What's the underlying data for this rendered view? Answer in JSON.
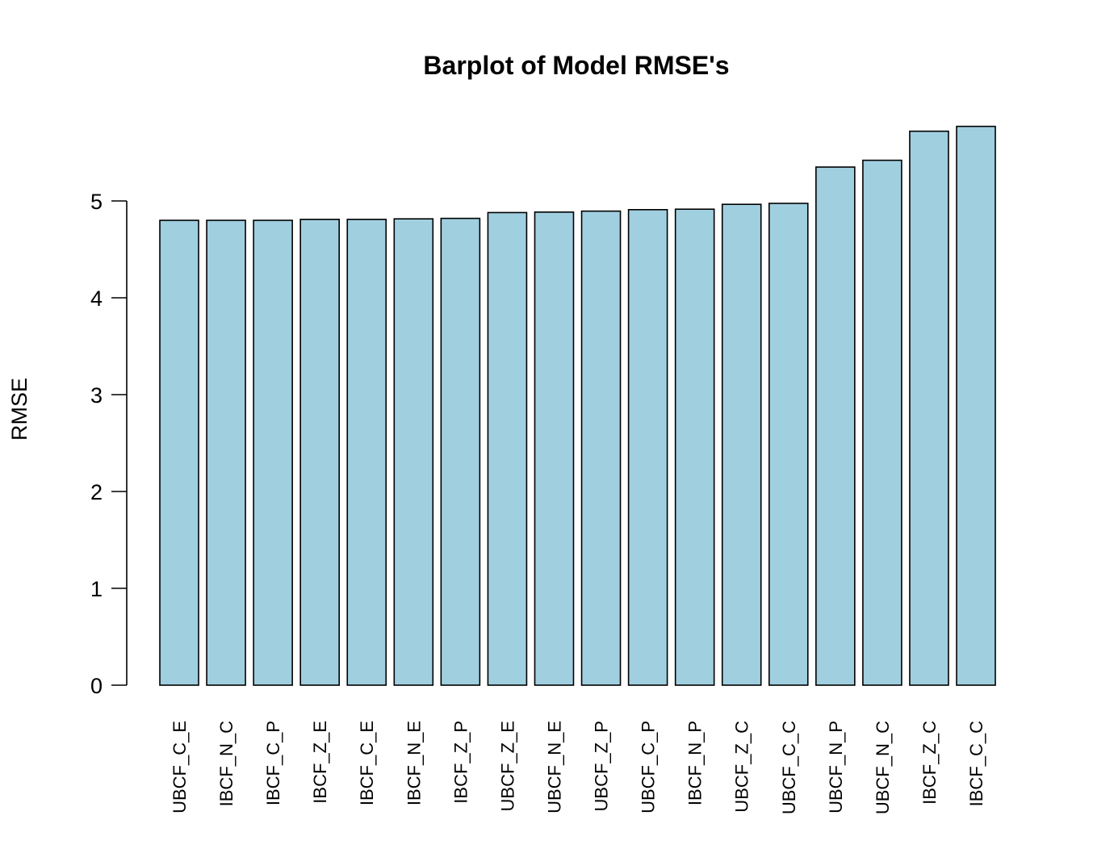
{
  "chart_data": {
    "type": "bar",
    "title": "Barplot of Model RMSE's",
    "xlabel": "",
    "ylabel": "RMSE",
    "bar_color": "#A0CFE0",
    "border_color": "#000000",
    "ylim": [
      0,
      5.8
    ],
    "yticks": [
      0,
      1,
      2,
      3,
      4,
      5
    ],
    "categories": [
      "UBCF_C_E",
      "IBCF_N_C",
      "IBCF_C_P",
      "IBCF_Z_E",
      "IBCF_C_E",
      "IBCF_N_E",
      "IBCF_Z_P",
      "UBCF_Z_E",
      "UBCF_N_E",
      "UBCF_Z_P",
      "UBCF_C_P",
      "IBCF_N_P",
      "UBCF_Z_C",
      "UBCF_C_C",
      "UBCF_N_P",
      "UBCF_N_C",
      "IBCF_Z_C",
      "IBCF_C_C"
    ],
    "values": [
      4.8,
      4.8,
      4.8,
      4.81,
      4.81,
      4.815,
      4.82,
      4.88,
      4.885,
      4.895,
      4.91,
      4.915,
      4.965,
      4.975,
      5.35,
      5.42,
      5.72,
      5.77
    ],
    "grid": false,
    "legend": "none"
  }
}
